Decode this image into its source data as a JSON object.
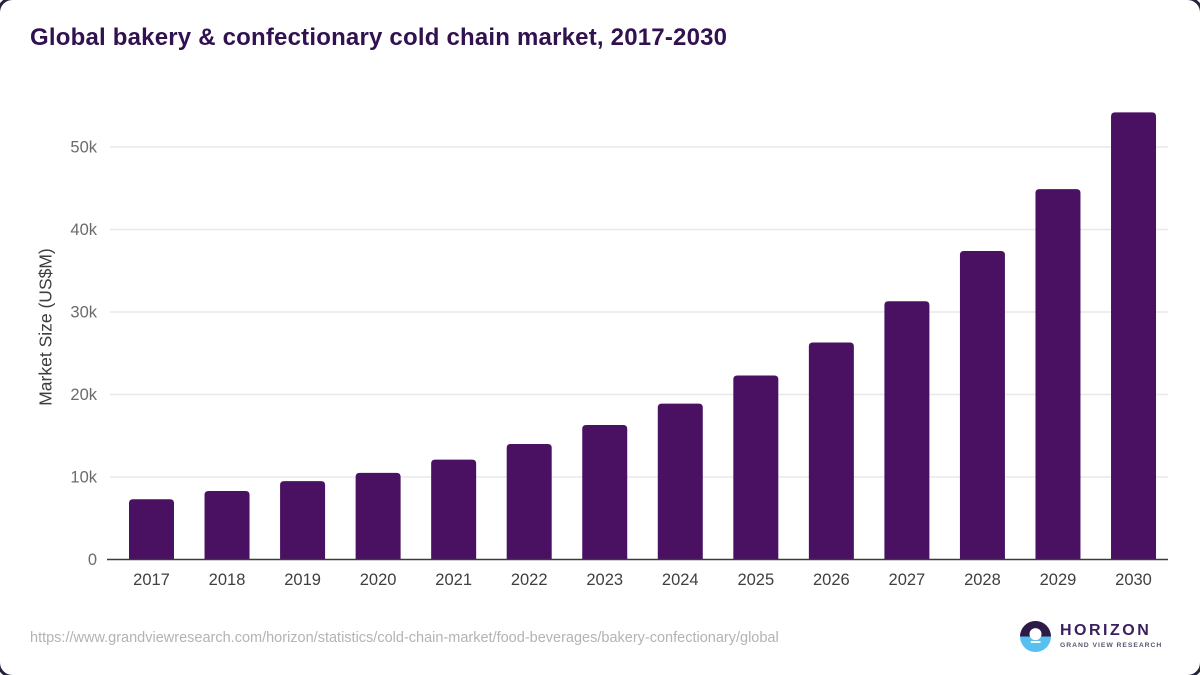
{
  "chart_data": {
    "type": "bar",
    "title": "Global bakery & confectionary cold chain market, 2017-2030",
    "ylabel": "Market Size (US$M)",
    "xlabel": "",
    "categories": [
      "2017",
      "2018",
      "2019",
      "2020",
      "2021",
      "2022",
      "2023",
      "2024",
      "2025",
      "2026",
      "2027",
      "2028",
      "2029",
      "2030"
    ],
    "values": [
      7300,
      8300,
      9500,
      10500,
      12100,
      14000,
      16300,
      18900,
      22300,
      26300,
      31300,
      37400,
      44900,
      54200
    ],
    "unit": "US$M",
    "ylim": [
      0,
      55000
    ],
    "yticks": [
      0,
      10000,
      20000,
      30000,
      40000,
      50000
    ],
    "ytick_labels": [
      "0",
      "10k",
      "20k",
      "30k",
      "40k",
      "50k"
    ],
    "grid": true,
    "legend": false,
    "bar_color": "#4a1162"
  },
  "footer": {
    "source_url": "https://www.grandviewresearch.com/horizon/statistics/cold-chain-market/food-beverages/bakery-confectionary/global",
    "logo": {
      "name": "HORIZON",
      "subtitle": "GRAND VIEW RESEARCH"
    }
  },
  "colors": {
    "title": "#321150",
    "bar": "#4a1162",
    "grid": "#e8e8e8",
    "axis": "#3c3c3c",
    "ytick_text": "#6b6b6b",
    "xtick_text": "#3f3f3f",
    "url_text": "#b3b3b3",
    "logo_purple": "#2e1a47",
    "logo_blue": "#57c0ee",
    "corner_frame": "#23233c"
  }
}
